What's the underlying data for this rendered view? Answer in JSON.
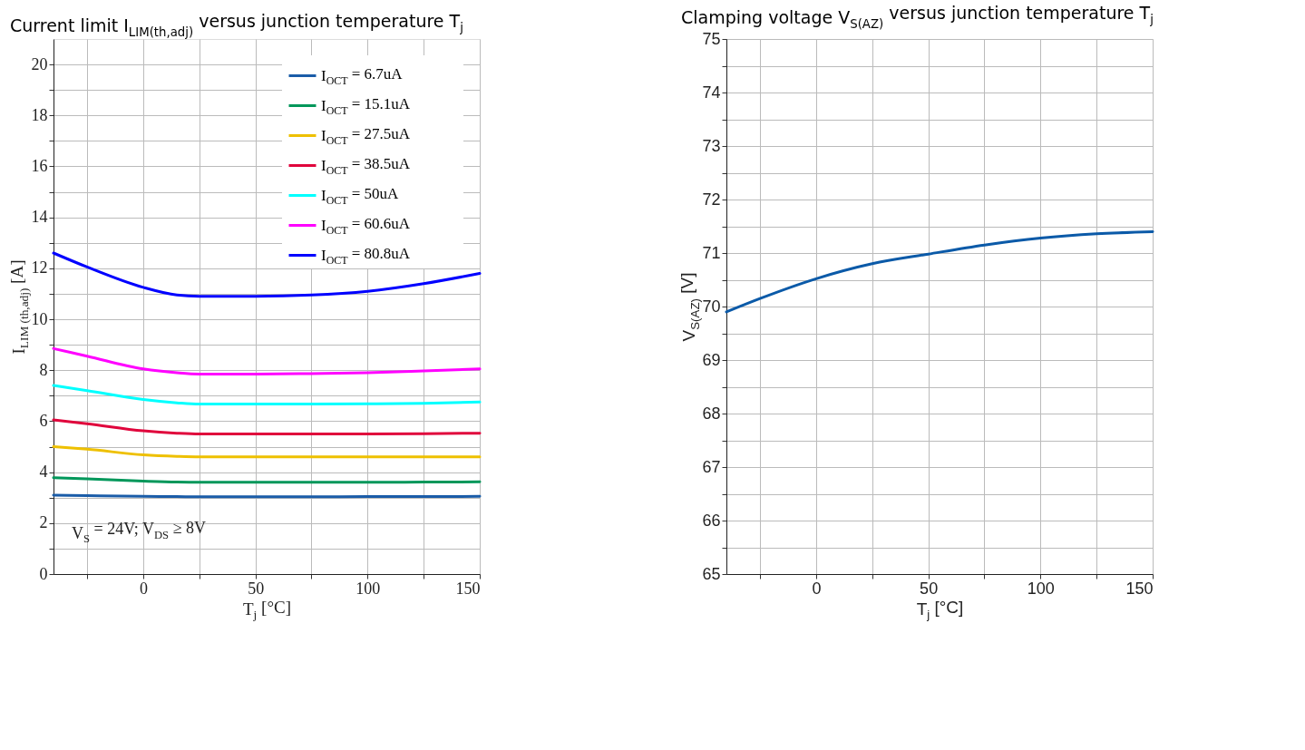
{
  "chart_data": [
    {
      "type": "line",
      "title": "Current limit I$_{LIM(th,adj)}$ versus junction temperature T$_{j}$",
      "xlabel": "T$_{j}$ [°C]",
      "ylabel": "I$_{LIM (th,adj)}$ [A]",
      "x": [
        -40,
        -25,
        0,
        15,
        25,
        50,
        75,
        100,
        125,
        150
      ],
      "series": [
        {
          "name": "I$_{OCT}$ = 6.7uA",
          "color": "#1a5ca8",
          "values": [
            3.1,
            3.08,
            3.05,
            3.04,
            3.03,
            3.03,
            3.03,
            3.04,
            3.04,
            3.05
          ]
        },
        {
          "name": "I$_{OCT}$ = 15.1uA",
          "color": "#00975a",
          "values": [
            3.78,
            3.74,
            3.65,
            3.61,
            3.6,
            3.6,
            3.6,
            3.6,
            3.61,
            3.62
          ]
        },
        {
          "name": "I$_{OCT}$ = 27.5uA",
          "color": "#eec000",
          "values": [
            5.0,
            4.9,
            4.68,
            4.62,
            4.6,
            4.6,
            4.6,
            4.6,
            4.6,
            4.6
          ]
        },
        {
          "name": "I$_{OCT}$ = 38.5uA",
          "color": "#e0053c",
          "values": [
            6.05,
            5.9,
            5.62,
            5.53,
            5.5,
            5.5,
            5.5,
            5.5,
            5.51,
            5.53
          ]
        },
        {
          "name": "I$_{OCT}$ = 50uA",
          "color": "#00ffff",
          "values": [
            7.4,
            7.2,
            6.85,
            6.72,
            6.67,
            6.67,
            6.67,
            6.68,
            6.7,
            6.75
          ]
        },
        {
          "name": "I$_{OCT}$ = 60.6uA",
          "color": "#ff00ff",
          "values": [
            8.85,
            8.55,
            8.05,
            7.9,
            7.85,
            7.85,
            7.87,
            7.9,
            7.97,
            8.05
          ]
        },
        {
          "name": "I$_{OCT}$ = 80.8uA",
          "color": "#0000ff",
          "values": [
            12.6,
            12.05,
            11.25,
            10.95,
            10.9,
            10.9,
            10.95,
            11.1,
            11.4,
            11.8
          ]
        }
      ],
      "xlim": [
        -40,
        150
      ],
      "xticks": [
        {
          "value": -25,
          "label": null
        },
        0,
        {
          "value": 25,
          "label": null
        },
        50,
        {
          "value": 75,
          "label": null
        },
        100,
        {
          "value": 125,
          "label": null
        },
        150
      ],
      "ylim": [
        0,
        21
      ],
      "yticks": [
        0,
        {
          "value": 1,
          "label": null
        },
        2,
        {
          "value": 3,
          "label": null
        },
        4,
        {
          "value": 5,
          "label": null
        },
        6,
        {
          "value": 7,
          "label": null
        },
        8,
        {
          "value": 9,
          "label": null
        },
        10,
        {
          "value": 11,
          "label": null
        },
        12,
        {
          "value": 13,
          "label": null
        },
        14,
        {
          "value": 15,
          "label": null
        },
        16,
        {
          "value": 17,
          "label": null
        },
        18,
        {
          "value": 19,
          "label": null
        },
        20
      ],
      "annotations": [
        "V$_{S}$ = 24V; V$_{DS}$ ≥ 8V"
      ],
      "grid": true,
      "legend": "top right",
      "line_style": "solid",
      "marker": "none"
    },
    {
      "type": "line",
      "title": "Clamping voltage V$_{S(AZ)}$ versus junction temperature T$_{j}$",
      "xlabel": "T$_{j}$ [°C]",
      "ylabel": "V$_{S(AZ)}$ [V]",
      "x": [
        -40,
        -25,
        0,
        25,
        50,
        75,
        100,
        125,
        150
      ],
      "series": [
        {
          "color": "#0b5aa8",
          "values": [
            69.9,
            70.15,
            70.52,
            70.8,
            70.98,
            71.15,
            71.28,
            71.36,
            71.4
          ]
        }
      ],
      "xlim": [
        -40,
        150
      ],
      "xticks": [
        {
          "value": -25,
          "label": null
        },
        0,
        {
          "value": 25,
          "label": null
        },
        50,
        {
          "value": 75,
          "label": null
        },
        100,
        {
          "value": 125,
          "label": null
        },
        150
      ],
      "ylim": [
        65,
        75
      ],
      "yticks": [
        65,
        {
          "value": 65.5,
          "label": null
        },
        66,
        {
          "value": 66.5,
          "label": null
        },
        67,
        {
          "value": 67.5,
          "label": null
        },
        68,
        {
          "value": 68.5,
          "label": null
        },
        69,
        {
          "value": 69.5,
          "label": null
        },
        70,
        {
          "value": 70.5,
          "label": null
        },
        71,
        {
          "value": 71.5,
          "label": null
        },
        72,
        {
          "value": 72.5,
          "label": null
        },
        73,
        {
          "value": 73.5,
          "label": null
        },
        74,
        {
          "value": 74.5,
          "label": null
        },
        75
      ],
      "grid": true,
      "legend": false,
      "line_style": "solid",
      "marker": "none"
    }
  ]
}
